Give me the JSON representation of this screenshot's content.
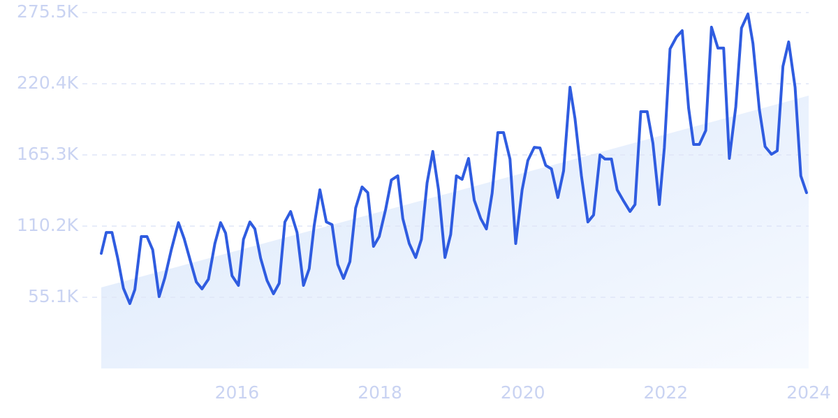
{
  "chart_data": {
    "type": "line",
    "x": [
      2014.1,
      2014.17,
      2014.25,
      2014.33,
      2014.41,
      2014.5,
      2014.57,
      2014.66,
      2014.74,
      2014.82,
      2014.91,
      2014.99,
      2015.08,
      2015.18,
      2015.26,
      2015.35,
      2015.43,
      2015.51,
      2015.6,
      2015.69,
      2015.77,
      2015.84,
      2015.93,
      2016.02,
      2016.09,
      2016.18,
      2016.25,
      2016.33,
      2016.42,
      2016.51,
      2016.59,
      2016.67,
      2016.75,
      2016.84,
      2016.93,
      2017.01,
      2017.08,
      2017.16,
      2017.25,
      2017.33,
      2017.41,
      2017.49,
      2017.58,
      2017.66,
      2017.75,
      2017.83,
      2017.91,
      2017.99,
      2018.08,
      2018.16,
      2018.25,
      2018.32,
      2018.41,
      2018.5,
      2018.58,
      2018.66,
      2018.74,
      2018.82,
      2018.91,
      2018.99,
      2019.07,
      2019.15,
      2019.24,
      2019.32,
      2019.41,
      2019.49,
      2019.57,
      2019.65,
      2019.73,
      2019.82,
      2019.9,
      2019.99,
      2020.07,
      2020.16,
      2020.24,
      2020.32,
      2020.4,
      2020.49,
      2020.57,
      2020.66,
      2020.73,
      2020.82,
      2020.91,
      2020.99,
      2021.08,
      2021.15,
      2021.24,
      2021.32,
      2021.41,
      2021.5,
      2021.57,
      2021.65,
      2021.74,
      2021.82,
      2021.91,
      2021.98,
      2022.06,
      2022.15,
      2022.23,
      2022.32,
      2022.39,
      2022.47,
      2022.56,
      2022.64,
      2022.73,
      2022.81,
      2022.89,
      2022.98,
      2023.06,
      2023.15,
      2023.22,
      2023.31,
      2023.39,
      2023.48,
      2023.56,
      2023.64,
      2023.72,
      2023.81,
      2023.89,
      2023.97
    ],
    "series": [
      {
        "color": "#2f5ce0",
        "values": [
          89100,
          105300,
          105300,
          85400,
          62100,
          50200,
          61000,
          102100,
          102100,
          91800,
          55600,
          70200,
          91800,
          112900,
          100500,
          82700,
          67000,
          61600,
          69100,
          96700,
          112900,
          104800,
          71800,
          64300,
          99900,
          113400,
          108000,
          85400,
          68100,
          57800,
          65900,
          113400,
          121500,
          105300,
          64300,
          77200,
          110700,
          138300,
          113400,
          111300,
          80500,
          69700,
          82700,
          124200,
          140500,
          136100,
          94500,
          102100,
          123200,
          145900,
          149100,
          116100,
          96700,
          85900,
          99900,
          143700,
          168000,
          138300,
          85900,
          103700,
          149100,
          146400,
          162600,
          130200,
          116100,
          108000,
          135600,
          182600,
          182600,
          162100,
          96700,
          138300,
          161000,
          171200,
          170700,
          157200,
          154500,
          132300,
          152900,
          217700,
          193400,
          149100,
          113400,
          118800,
          165300,
          162100,
          162100,
          138300,
          129600,
          121500,
          126900,
          198800,
          198800,
          174500,
          126900,
          170700,
          247400,
          256600,
          261500,
          201500,
          173400,
          173400,
          184200,
          264200,
          248000,
          248000,
          162600,
          202600,
          263600,
          274400,
          251700,
          200400,
          171800,
          165800,
          168500,
          233900,
          252800,
          217700,
          149100,
          136100
        ]
      }
    ],
    "trend": {
      "x": [
        2014.1,
        2024.0
      ],
      "values": [
        62700,
        211200
      ],
      "color": "#dde9fb"
    },
    "xlim": [
      2014.1,
      2024.0
    ],
    "xticks": [
      2016,
      2018,
      2020,
      2022,
      2024
    ],
    "ylim": [
      0,
      275500
    ],
    "yticks": [
      {
        "value": 55100,
        "label": "55.1K"
      },
      {
        "value": 110200,
        "label": "110.2K"
      },
      {
        "value": 165300,
        "label": "165.3K"
      },
      {
        "value": 220400,
        "label": "220.4K"
      },
      {
        "value": 275500,
        "label": "275.5K"
      }
    ],
    "grid": true
  }
}
